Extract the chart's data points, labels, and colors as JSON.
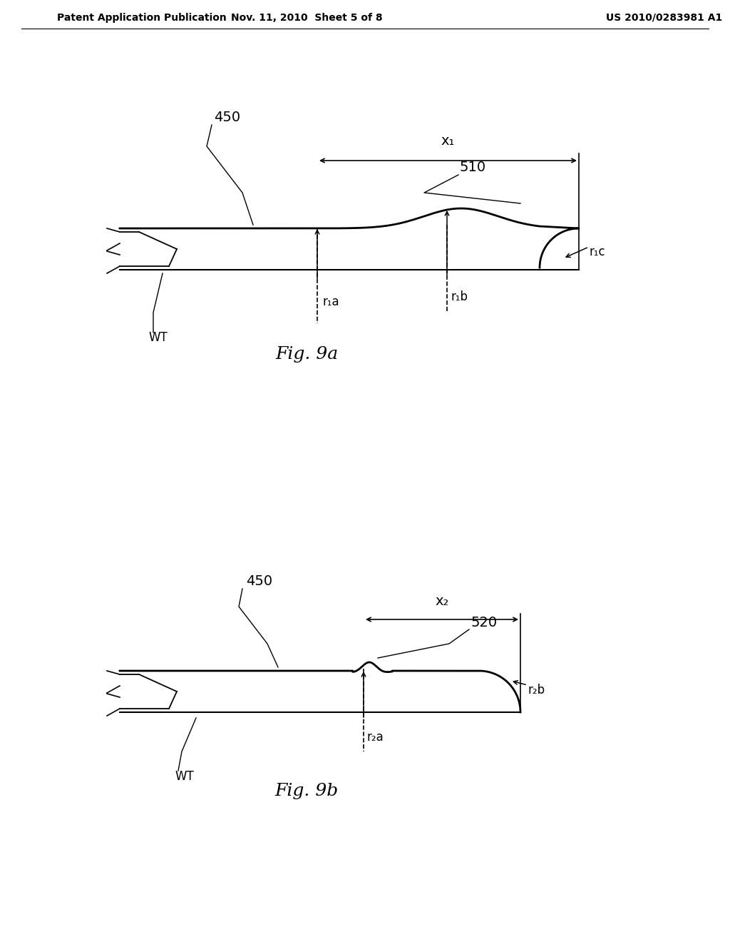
{
  "bg_color": "#ffffff",
  "header_left": "Patent Application Publication",
  "header_mid": "Nov. 11, 2010  Sheet 5 of 8",
  "header_right": "US 2010/0283981 A1",
  "fig_a_label": "Fig. 9a",
  "fig_b_label": "Fig. 9b",
  "label_450a": "450",
  "label_510": "510",
  "label_x1": "x₁",
  "label_r1a": "r₁a",
  "label_r1b": "r₁b",
  "label_r1c": "r₁c",
  "label_wt_a": "WT",
  "label_450b": "450",
  "label_520": "520",
  "label_x2": "x₂",
  "label_r2a": "r₂a",
  "label_r2b": "r₂b",
  "label_wt_b": "WT"
}
